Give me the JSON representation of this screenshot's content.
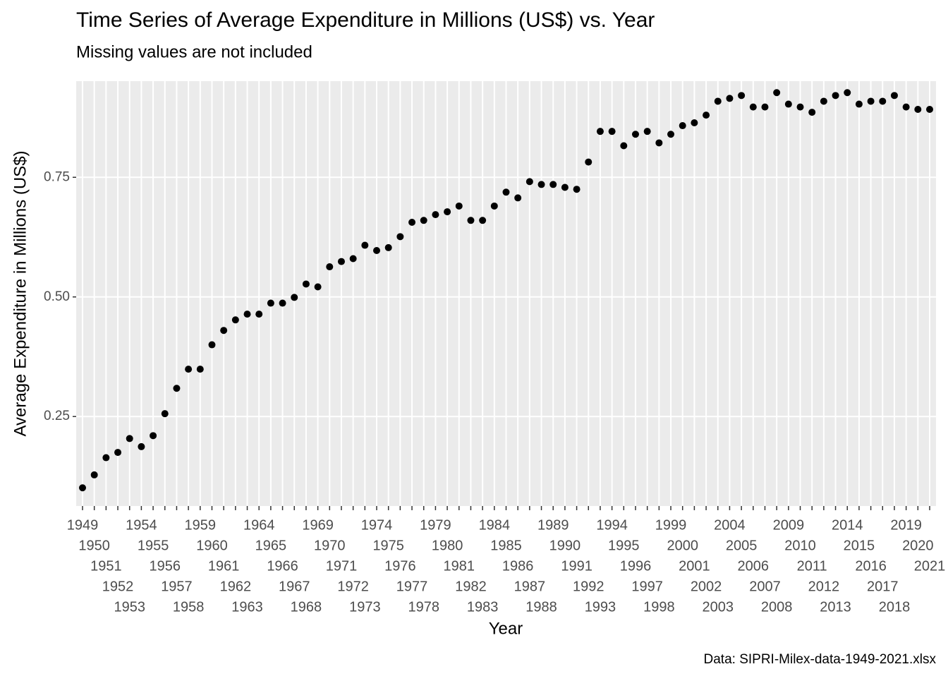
{
  "chart_data": {
    "type": "scatter",
    "title": "Time Series of Average Expenditure in Millions (US$) vs. Year",
    "subtitle": "Missing values are not included",
    "x_label": "Year",
    "y_label": "Average Expenditure in Millions (US$)",
    "caption": "Data: SIPRI-Milex-data-1949-2021.xlsx",
    "categories": [
      "1949",
      "1950",
      "1951",
      "1952",
      "1953",
      "1954",
      "1955",
      "1956",
      "1957",
      "1958",
      "1959",
      "1960",
      "1961",
      "1962",
      "1963",
      "1964",
      "1965",
      "1966",
      "1967",
      "1968",
      "1969",
      "1970",
      "1971",
      "1972",
      "1973",
      "1974",
      "1975",
      "1976",
      "1977",
      "1978",
      "1979",
      "1980",
      "1981",
      "1982",
      "1983",
      "1984",
      "1985",
      "1986",
      "1987",
      "1988",
      "1989",
      "1990",
      "1991",
      "1992",
      "1993",
      "1994",
      "1995",
      "1996",
      "1997",
      "1998",
      "1999",
      "2000",
      "2001",
      "2002",
      "2003",
      "2004",
      "2005",
      "2006",
      "2007",
      "2008",
      "2009",
      "2010",
      "2011",
      "2012",
      "2013",
      "2014",
      "2015",
      "2016",
      "2017",
      "2018",
      "2019",
      "2020",
      "2021"
    ],
    "values": [
      0.101,
      0.128,
      0.164,
      0.175,
      0.204,
      0.187,
      0.21,
      0.256,
      0.309,
      0.349,
      0.349,
      0.4,
      0.43,
      0.452,
      0.464,
      0.464,
      0.487,
      0.487,
      0.499,
      0.527,
      0.521,
      0.563,
      0.574,
      0.58,
      0.608,
      0.597,
      0.603,
      0.626,
      0.656,
      0.66,
      0.672,
      0.678,
      0.69,
      0.66,
      0.66,
      0.69,
      0.719,
      0.707,
      0.741,
      0.735,
      0.735,
      0.729,
      0.725,
      0.782,
      0.846,
      0.846,
      0.816,
      0.84,
      0.846,
      0.822,
      0.84,
      0.858,
      0.864,
      0.88,
      0.909,
      0.915,
      0.921,
      0.897,
      0.897,
      0.927,
      0.903,
      0.897,
      0.886,
      0.909,
      0.921,
      0.927,
      0.903,
      0.909,
      0.909,
      0.921,
      0.897,
      0.892,
      0.892
    ],
    "color": "#000000",
    "ylim": [
      0.063,
      0.951
    ],
    "yticks": [
      0.25,
      {
        "value": 0.5,
        "label": "0.50"
      },
      0.75
    ],
    "grid": true
  }
}
